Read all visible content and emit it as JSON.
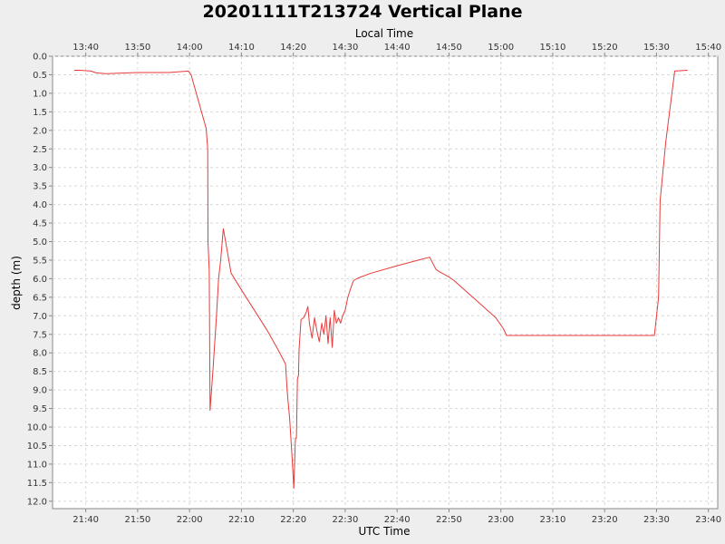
{
  "chart_data": {
    "type": "line",
    "title": "20201111T213724 Vertical Plane",
    "xlabel": "UTC Time",
    "x2label": "Local Time",
    "ylabel": "depth (m)",
    "x_unit": "minutes since 21:00 UTC",
    "xlim": [
      33.6,
      161.8
    ],
    "ylim": [
      0.0,
      12.2
    ],
    "y_inverted": true,
    "grid": true,
    "x_ticks": [
      {
        "v": 40,
        "label": "21:40"
      },
      {
        "v": 50,
        "label": "21:50"
      },
      {
        "v": 60,
        "label": "22:00"
      },
      {
        "v": 70,
        "label": "22:10"
      },
      {
        "v": 80,
        "label": "22:20"
      },
      {
        "v": 90,
        "label": "22:30"
      },
      {
        "v": 100,
        "label": "22:40"
      },
      {
        "v": 110,
        "label": "22:50"
      },
      {
        "v": 120,
        "label": "23:00"
      },
      {
        "v": 130,
        "label": "23:10"
      },
      {
        "v": 140,
        "label": "23:20"
      },
      {
        "v": 150,
        "label": "23:30"
      },
      {
        "v": 160,
        "label": "23:40"
      }
    ],
    "x2_ticks": [
      {
        "v": 40,
        "label": "13:40"
      },
      {
        "v": 50,
        "label": "13:50"
      },
      {
        "v": 60,
        "label": "14:00"
      },
      {
        "v": 70,
        "label": "14:10"
      },
      {
        "v": 80,
        "label": "14:20"
      },
      {
        "v": 90,
        "label": "14:30"
      },
      {
        "v": 100,
        "label": "14:40"
      },
      {
        "v": 110,
        "label": "14:50"
      },
      {
        "v": 120,
        "label": "15:00"
      },
      {
        "v": 130,
        "label": "15:10"
      },
      {
        "v": 140,
        "label": "15:20"
      },
      {
        "v": 150,
        "label": "15:30"
      },
      {
        "v": 160,
        "label": "15:40"
      }
    ],
    "y_ticks": [
      "0.0",
      "0.5",
      "1.0",
      "1.5",
      "2.0",
      "2.5",
      "3.0",
      "3.5",
      "4.0",
      "4.5",
      "5.0",
      "5.5",
      "6.0",
      "6.5",
      "7.0",
      "7.5",
      "8.0",
      "8.5",
      "9.0",
      "9.5",
      "10.0",
      "10.5",
      "11.0",
      "11.5",
      "12.0"
    ],
    "series": [
      {
        "name": "depth",
        "color": "#e83a3a",
        "points": [
          [
            37.8,
            0.38
          ],
          [
            38.9,
            0.38
          ],
          [
            41.0,
            0.4
          ],
          [
            42.0,
            0.45
          ],
          [
            44.0,
            0.47
          ],
          [
            50.0,
            0.44
          ],
          [
            56.0,
            0.44
          ],
          [
            59.8,
            0.4
          ],
          [
            60.3,
            0.5
          ],
          [
            63.2,
            1.95
          ],
          [
            63.5,
            2.5
          ],
          [
            63.55,
            5.0
          ],
          [
            63.8,
            5.8
          ],
          [
            63.95,
            9.55
          ],
          [
            64.5,
            8.5
          ],
          [
            65.2,
            7.0
          ],
          [
            65.6,
            6.0
          ],
          [
            66.0,
            5.5
          ],
          [
            66.5,
            4.65
          ],
          [
            67.2,
            5.2
          ],
          [
            68.0,
            5.85
          ],
          [
            70.0,
            6.3
          ],
          [
            75.0,
            7.4
          ],
          [
            77.0,
            7.9
          ],
          [
            78.5,
            8.3
          ],
          [
            78.8,
            9.0
          ],
          [
            79.3,
            9.8
          ],
          [
            79.8,
            10.9
          ],
          [
            80.1,
            11.65
          ],
          [
            80.4,
            10.3
          ],
          [
            80.6,
            10.3
          ],
          [
            80.8,
            8.7
          ],
          [
            81.0,
            8.6
          ],
          [
            81.1,
            7.9
          ],
          [
            81.5,
            7.1
          ],
          [
            82.0,
            7.05
          ],
          [
            82.5,
            6.9
          ],
          [
            82.8,
            6.75
          ],
          [
            83.1,
            7.2
          ],
          [
            83.6,
            7.6
          ],
          [
            84.1,
            7.05
          ],
          [
            84.6,
            7.45
          ],
          [
            85.0,
            7.7
          ],
          [
            85.5,
            7.2
          ],
          [
            85.9,
            7.5
          ],
          [
            86.3,
            7.0
          ],
          [
            86.7,
            7.75
          ],
          [
            87.1,
            7.05
          ],
          [
            87.5,
            7.85
          ],
          [
            87.9,
            6.85
          ],
          [
            88.3,
            7.2
          ],
          [
            88.7,
            7.05
          ],
          [
            89.1,
            7.2
          ],
          [
            89.5,
            7.0
          ],
          [
            90.0,
            6.85
          ],
          [
            90.5,
            6.5
          ],
          [
            91.2,
            6.2
          ],
          [
            91.6,
            6.05
          ],
          [
            92.5,
            5.98
          ],
          [
            95.0,
            5.85
          ],
          [
            100.0,
            5.65
          ],
          [
            104.0,
            5.5
          ],
          [
            106.3,
            5.42
          ],
          [
            107.5,
            5.75
          ],
          [
            108.0,
            5.8
          ],
          [
            110.0,
            5.95
          ],
          [
            111.0,
            6.05
          ],
          [
            115.0,
            6.55
          ],
          [
            119.0,
            7.05
          ],
          [
            120.5,
            7.35
          ],
          [
            121.1,
            7.53
          ],
          [
            130.0,
            7.53
          ],
          [
            140.0,
            7.53
          ],
          [
            149.6,
            7.53
          ],
          [
            150.4,
            6.5
          ],
          [
            150.7,
            3.9
          ],
          [
            151.8,
            2.3
          ],
          [
            153.5,
            0.4
          ],
          [
            156.0,
            0.38
          ]
        ]
      }
    ]
  }
}
